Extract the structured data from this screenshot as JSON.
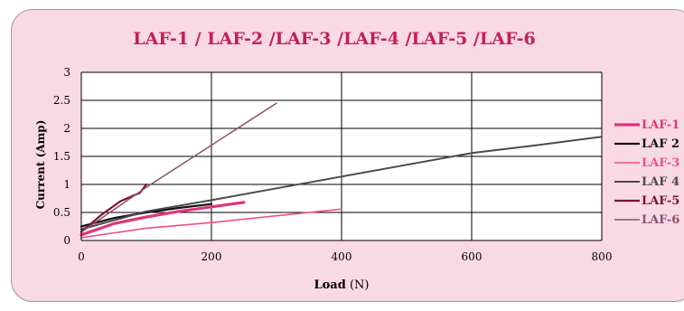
{
  "chart_data": {
    "type": "line",
    "title": "LAF-1 / LAF-2 /LAF-3 /LAF-4 /LAF-5 /LAF-6",
    "xlabel": "Load",
    "xlabel_unit": "(N)",
    "ylabel": "Current (Amp)",
    "xlim": [
      0,
      800
    ],
    "ylim": [
      0,
      3
    ],
    "x_ticks": [
      "0",
      "200",
      "400",
      "600",
      "800"
    ],
    "y_ticks": [
      "0",
      "0.5",
      "1",
      "1.5",
      "2",
      "2.5",
      "3"
    ],
    "grid": true,
    "legend_position": "right",
    "series": [
      {
        "name": "LAF-1",
        "color": "#e0357a",
        "width": 3.2,
        "x": [
          0,
          50,
          100,
          150,
          200,
          250
        ],
        "y": [
          0.1,
          0.3,
          0.42,
          0.52,
          0.6,
          0.68
        ]
      },
      {
        "name": "LAF 2",
        "color": "#111111",
        "width": 2.2,
        "x": [
          0,
          50,
          100,
          150,
          200
        ],
        "y": [
          0.25,
          0.4,
          0.5,
          0.58,
          0.65
        ]
      },
      {
        "name": "LAF-3",
        "color": "#ec4f8a",
        "width": 1.6,
        "x": [
          0,
          100,
          200,
          300,
          400
        ],
        "y": [
          0.05,
          0.22,
          0.32,
          0.44,
          0.56
        ]
      },
      {
        "name": "LAF 4",
        "color": "#4a4a4a",
        "width": 2.0,
        "x": [
          0,
          100,
          200,
          300,
          400,
          500,
          600,
          700,
          800
        ],
        "y": [
          0.2,
          0.52,
          0.72,
          0.93,
          1.14,
          1.35,
          1.56,
          1.7,
          1.85
        ]
      },
      {
        "name": "LAF-5",
        "color": "#7a1030",
        "width": 2.2,
        "x": [
          0,
          30,
          60,
          90,
          100
        ],
        "y": [
          0.15,
          0.45,
          0.7,
          0.85,
          1.0
        ]
      },
      {
        "name": "LAF-6",
        "color": "#8a5070",
        "width": 1.5,
        "x": [
          0,
          100,
          200,
          300
        ],
        "y": [
          0.15,
          0.95,
          1.7,
          2.45
        ]
      }
    ]
  }
}
